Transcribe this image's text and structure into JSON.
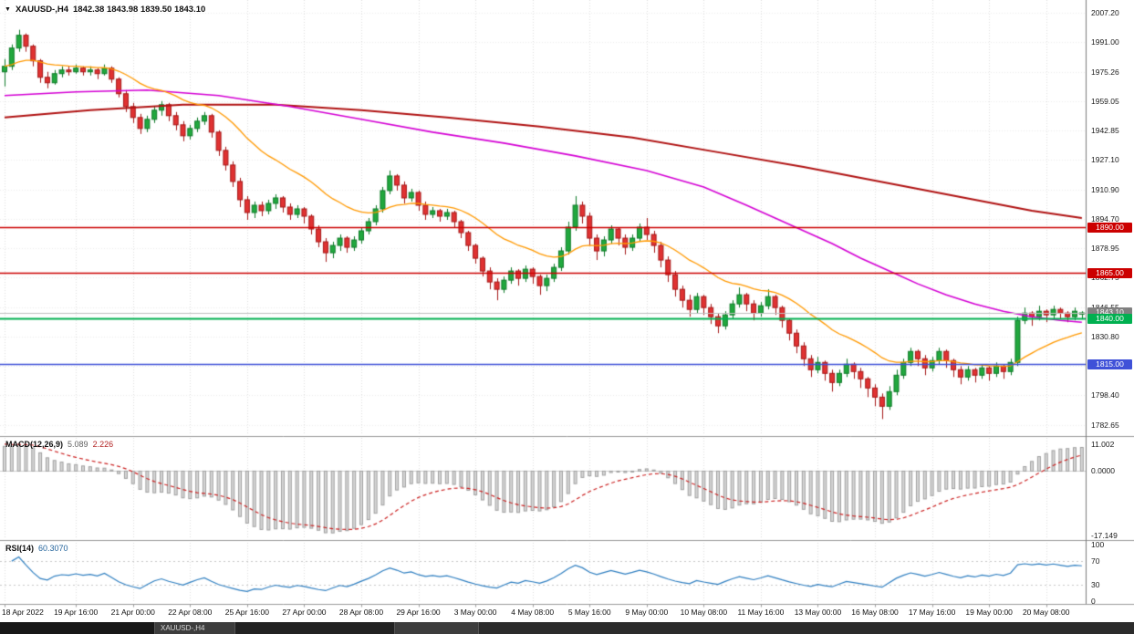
{
  "title": {
    "symbol": "XAUUSD-,H4",
    "ohlc": "1842.38 1843.98 1839.50 1843.10"
  },
  "colors": {
    "up": "#21a83e",
    "up_border": "#0e7a28",
    "down": "#e03232",
    "down_border": "#a51717",
    "ma_fast": "#ff9900",
    "ma_mid": "#d400d4",
    "ma_slow": "#b01212",
    "level_red": "#cc0000",
    "level_green": "#00b050",
    "level_blue": "#3f51d8",
    "bid_line": "#c0c0c0",
    "bid_tag": "#808080",
    "macd_bar": "#d6d6d6",
    "macd_bar_border": "#a0a0a0",
    "macd_signal": "#cc2222",
    "rsi_line": "#2f7fc1",
    "grid": "#dedede",
    "grid_h": "#ececec"
  },
  "price_axis": {
    "ticks": [
      "2007.20",
      "1991.00",
      "1975.26",
      "1959.05",
      "1942.85",
      "1927.10",
      "1910.90",
      "1894.70",
      "1878.95",
      "1862.75",
      "1846.55",
      "1830.80",
      "1815.05",
      "1798.40",
      "1782.65"
    ]
  },
  "time_axis": {
    "labels": [
      {
        "i": 0,
        "t": "18 Apr 2022"
      },
      {
        "i": 10,
        "t": "19 Apr 16:00"
      },
      {
        "i": 18,
        "t": "21 Apr 00:00"
      },
      {
        "i": 26,
        "t": "22 Apr 08:00"
      },
      {
        "i": 34,
        "t": "25 Apr 16:00"
      },
      {
        "i": 42,
        "t": "27 Apr 00:00"
      },
      {
        "i": 50,
        "t": "28 Apr 08:00"
      },
      {
        "i": 58,
        "t": "29 Apr 16:00"
      },
      {
        "i": 66,
        "t": "3 May 00:00"
      },
      {
        "i": 74,
        "t": "4 May 08:00"
      },
      {
        "i": 82,
        "t": "5 May 16:00"
      },
      {
        "i": 90,
        "t": "9 May 00:00"
      },
      {
        "i": 98,
        "t": "10 May 08:00"
      },
      {
        "i": 106,
        "t": "11 May 16:00"
      },
      {
        "i": 114,
        "t": "13 May 00:00"
      },
      {
        "i": 122,
        "t": "16 May 08:00"
      },
      {
        "i": 130,
        "t": "17 May 16:00"
      },
      {
        "i": 138,
        "t": "19 May 00:00"
      },
      {
        "i": 146,
        "t": "20 May 08:00"
      }
    ]
  },
  "chart_data": {
    "type": "candlestick",
    "symbol": "XAUUSD",
    "timeframe": "H4",
    "current_bar": {
      "open": 1842.38,
      "high": 1843.98,
      "low": 1839.5,
      "close": 1843.1
    },
    "price_range": {
      "top": 2014.3,
      "bottom": 1776.2
    },
    "candles": [
      [
        1975,
        1982,
        1967,
        1978
      ],
      [
        1978,
        1990,
        1976,
        1988
      ],
      [
        1988,
        1998,
        1986,
        1995
      ],
      [
        1995,
        1996,
        1986,
        1989
      ],
      [
        1989,
        1990,
        1978,
        1981
      ],
      [
        1981,
        1982,
        1969,
        1972
      ],
      [
        1972,
        1975,
        1966,
        1969
      ],
      [
        1969,
        1976,
        1968,
        1974
      ],
      [
        1974,
        1978,
        1972,
        1976
      ],
      [
        1976,
        1978,
        1973,
        1975
      ],
      [
        1975,
        1979,
        1974,
        1977
      ],
      [
        1977,
        1978,
        1973,
        1975
      ],
      [
        1975,
        1978,
        1973,
        1976
      ],
      [
        1976,
        1977,
        1971,
        1974
      ],
      [
        1974,
        1979,
        1973,
        1977
      ],
      [
        1977,
        1978,
        1969,
        1971
      ],
      [
        1971,
        1972,
        1961,
        1963
      ],
      [
        1963,
        1965,
        1953,
        1956
      ],
      [
        1956,
        1958,
        1947,
        1950
      ],
      [
        1950,
        1952,
        1941,
        1944
      ],
      [
        1944,
        1951,
        1942,
        1949
      ],
      [
        1949,
        1956,
        1947,
        1954
      ],
      [
        1954,
        1959,
        1951,
        1957
      ],
      [
        1957,
        1958,
        1948,
        1951
      ],
      [
        1951,
        1953,
        1943,
        1946
      ],
      [
        1946,
        1948,
        1937,
        1940
      ],
      [
        1940,
        1946,
        1938,
        1944
      ],
      [
        1944,
        1950,
        1942,
        1948
      ],
      [
        1948,
        1953,
        1946,
        1951
      ],
      [
        1951,
        1952,
        1939,
        1942
      ],
      [
        1942,
        1943,
        1929,
        1932
      ],
      [
        1932,
        1934,
        1921,
        1924
      ],
      [
        1924,
        1926,
        1912,
        1915
      ],
      [
        1915,
        1917,
        1901,
        1905
      ],
      [
        1905,
        1907,
        1894,
        1898
      ],
      [
        1898,
        1904,
        1895,
        1902
      ],
      [
        1902,
        1904,
        1896,
        1899
      ],
      [
        1899,
        1905,
        1897,
        1903
      ],
      [
        1903,
        1908,
        1900,
        1906
      ],
      [
        1906,
        1907,
        1898,
        1901
      ],
      [
        1901,
        1903,
        1894,
        1897
      ],
      [
        1897,
        1902,
        1895,
        1900
      ],
      [
        1900,
        1901,
        1892,
        1896
      ],
      [
        1896,
        1897,
        1886,
        1889
      ],
      [
        1889,
        1891,
        1879,
        1882
      ],
      [
        1882,
        1884,
        1871,
        1876
      ],
      [
        1876,
        1882,
        1873,
        1880
      ],
      [
        1880,
        1886,
        1877,
        1884
      ],
      [
        1884,
        1885,
        1876,
        1879
      ],
      [
        1879,
        1885,
        1877,
        1883
      ],
      [
        1883,
        1890,
        1881,
        1888
      ],
      [
        1888,
        1895,
        1886,
        1893
      ],
      [
        1893,
        1902,
        1891,
        1900
      ],
      [
        1900,
        1912,
        1898,
        1910
      ],
      [
        1910,
        1921,
        1908,
        1918
      ],
      [
        1918,
        1919,
        1910,
        1913
      ],
      [
        1913,
        1915,
        1903,
        1906
      ],
      [
        1906,
        1911,
        1904,
        1909
      ],
      [
        1909,
        1910,
        1899,
        1902
      ],
      [
        1902,
        1904,
        1894,
        1897
      ],
      [
        1897,
        1901,
        1895,
        1899
      ],
      [
        1899,
        1900,
        1893,
        1896
      ],
      [
        1896,
        1900,
        1894,
        1898
      ],
      [
        1898,
        1899,
        1890,
        1893
      ],
      [
        1893,
        1894,
        1884,
        1887
      ],
      [
        1887,
        1888,
        1877,
        1880
      ],
      [
        1880,
        1881,
        1870,
        1873
      ],
      [
        1873,
        1874,
        1863,
        1866
      ],
      [
        1866,
        1868,
        1856,
        1860
      ],
      [
        1860,
        1862,
        1850,
        1856
      ],
      [
        1856,
        1863,
        1854,
        1861
      ],
      [
        1861,
        1868,
        1859,
        1866
      ],
      [
        1866,
        1867,
        1858,
        1862
      ],
      [
        1862,
        1869,
        1860,
        1867
      ],
      [
        1867,
        1868,
        1859,
        1863
      ],
      [
        1863,
        1864,
        1853,
        1858
      ],
      [
        1858,
        1864,
        1855,
        1862
      ],
      [
        1862,
        1870,
        1860,
        1868
      ],
      [
        1868,
        1879,
        1866,
        1877
      ],
      [
        1877,
        1893,
        1875,
        1890
      ],
      [
        1890,
        1907,
        1888,
        1902
      ],
      [
        1902,
        1904,
        1892,
        1896
      ],
      [
        1896,
        1898,
        1880,
        1884
      ],
      [
        1884,
        1886,
        1872,
        1877
      ],
      [
        1877,
        1885,
        1874,
        1883
      ],
      [
        1883,
        1891,
        1881,
        1889
      ],
      [
        1889,
        1890,
        1880,
        1884
      ],
      [
        1884,
        1886,
        1875,
        1879
      ],
      [
        1879,
        1886,
        1877,
        1884
      ],
      [
        1884,
        1892,
        1882,
        1890
      ],
      [
        1890,
        1895,
        1883,
        1886
      ],
      [
        1886,
        1888,
        1876,
        1880
      ],
      [
        1880,
        1882,
        1868,
        1872
      ],
      [
        1872,
        1874,
        1860,
        1864
      ],
      [
        1864,
        1866,
        1852,
        1856
      ],
      [
        1856,
        1858,
        1846,
        1850
      ],
      [
        1850,
        1853,
        1841,
        1845
      ],
      [
        1845,
        1854,
        1843,
        1852
      ],
      [
        1852,
        1853,
        1842,
        1846
      ],
      [
        1846,
        1848,
        1837,
        1841
      ],
      [
        1841,
        1843,
        1832,
        1836
      ],
      [
        1836,
        1844,
        1834,
        1842
      ],
      [
        1842,
        1850,
        1840,
        1848
      ],
      [
        1848,
        1857,
        1846,
        1853
      ],
      [
        1853,
        1854,
        1844,
        1848
      ],
      [
        1848,
        1850,
        1839,
        1843
      ],
      [
        1843,
        1849,
        1841,
        1847
      ],
      [
        1847,
        1856,
        1845,
        1852
      ],
      [
        1852,
        1853,
        1842,
        1846
      ],
      [
        1846,
        1847,
        1835,
        1839
      ],
      [
        1839,
        1840,
        1828,
        1832
      ],
      [
        1832,
        1834,
        1821,
        1825
      ],
      [
        1825,
        1827,
        1814,
        1818
      ],
      [
        1818,
        1820,
        1808,
        1812
      ],
      [
        1812,
        1819,
        1810,
        1816
      ],
      [
        1816,
        1817,
        1806,
        1810
      ],
      [
        1810,
        1812,
        1800,
        1805
      ],
      [
        1805,
        1812,
        1803,
        1810
      ],
      [
        1810,
        1818,
        1808,
        1815
      ],
      [
        1815,
        1816,
        1807,
        1811
      ],
      [
        1811,
        1813,
        1802,
        1807
      ],
      [
        1807,
        1808,
        1797,
        1802
      ],
      [
        1802,
        1804,
        1792,
        1797
      ],
      [
        1797,
        1799,
        1785,
        1792
      ],
      [
        1792,
        1803,
        1790,
        1800
      ],
      [
        1800,
        1812,
        1798,
        1809
      ],
      [
        1809,
        1818,
        1807,
        1816
      ],
      [
        1816,
        1824,
        1814,
        1822
      ],
      [
        1822,
        1823,
        1814,
        1818
      ],
      [
        1818,
        1820,
        1809,
        1813
      ],
      [
        1813,
        1819,
        1811,
        1817
      ],
      [
        1817,
        1824,
        1815,
        1822
      ],
      [
        1822,
        1823,
        1813,
        1817
      ],
      [
        1817,
        1818,
        1808,
        1812
      ],
      [
        1812,
        1814,
        1804,
        1808
      ],
      [
        1808,
        1814,
        1806,
        1812
      ],
      [
        1812,
        1813,
        1805,
        1809
      ],
      [
        1809,
        1815,
        1807,
        1813
      ],
      [
        1813,
        1814,
        1806,
        1810
      ],
      [
        1810,
        1816,
        1808,
        1814
      ],
      [
        1814,
        1815,
        1807,
        1811
      ],
      [
        1811,
        1818,
        1809,
        1816
      ],
      [
        1816,
        1841,
        1814,
        1839
      ],
      [
        1839,
        1846,
        1837,
        1843
      ],
      [
        1843,
        1844,
        1836,
        1841
      ],
      [
        1841,
        1847,
        1839,
        1844
      ],
      [
        1844,
        1845,
        1838,
        1842
      ],
      [
        1842,
        1847,
        1840,
        1845
      ],
      [
        1845,
        1846,
        1840,
        1843
      ],
      [
        1843,
        1844,
        1838,
        1841
      ],
      [
        1841,
        1846,
        1839,
        1844
      ],
      [
        1842.4,
        1844,
        1839.5,
        1843.1
      ]
    ],
    "levels": [
      {
        "price": 1890.0,
        "label": "1890.00",
        "color": "#cc0000",
        "width": 1.5,
        "style": "solid"
      },
      {
        "price": 1865.0,
        "label": "1865.00",
        "color": "#cc0000",
        "width": 1.5,
        "style": "solid"
      },
      {
        "price": 1843.1,
        "label": "1843.10",
        "color": "#808080",
        "width": 1,
        "style": "bid"
      },
      {
        "price": 1840.0,
        "label": "1840.00",
        "color": "#00b050",
        "width": 2,
        "style": "solid"
      },
      {
        "price": 1815.0,
        "label": "1815.00",
        "color": "#3f51d8",
        "width": 1.5,
        "style": "solid"
      }
    ],
    "moving_averages": {
      "fast_period": 20,
      "mid_points": [
        [
          0,
          1962
        ],
        [
          10,
          1964
        ],
        [
          20,
          1965
        ],
        [
          30,
          1962
        ],
        [
          40,
          1956
        ],
        [
          50,
          1949
        ],
        [
          60,
          1942
        ],
        [
          70,
          1936
        ],
        [
          80,
          1929
        ],
        [
          90,
          1921
        ],
        [
          98,
          1912
        ],
        [
          104,
          1902
        ],
        [
          108,
          1895
        ],
        [
          112,
          1888
        ],
        [
          116,
          1881
        ],
        [
          120,
          1873
        ],
        [
          124,
          1866
        ],
        [
          128,
          1859
        ],
        [
          132,
          1853
        ],
        [
          136,
          1848
        ],
        [
          140,
          1844
        ],
        [
          144,
          1841
        ],
        [
          148,
          1839
        ],
        [
          151,
          1838
        ]
      ],
      "slow_points": [
        [
          0,
          1950
        ],
        [
          12,
          1954
        ],
        [
          25,
          1957
        ],
        [
          38,
          1957
        ],
        [
          50,
          1954
        ],
        [
          62,
          1950
        ],
        [
          75,
          1945
        ],
        [
          88,
          1939
        ],
        [
          100,
          1931
        ],
        [
          112,
          1923
        ],
        [
          124,
          1914
        ],
        [
          136,
          1905
        ],
        [
          144,
          1899
        ],
        [
          151,
          1895
        ]
      ]
    },
    "indicators": {
      "macd": {
        "name": "MACD(12,26,9)",
        "main": "5.089",
        "signal": "2.226",
        "fast": 12,
        "slow": 26,
        "smooth": 9,
        "axis_top": "11.002",
        "axis_zero": "0.0000",
        "axis_bottom": "-17.149"
      },
      "rsi": {
        "name": "RSI(14)",
        "value": "60.3070",
        "period": 14,
        "axis": [
          100,
          70,
          30,
          0
        ],
        "upper": 70,
        "lower": 30
      }
    }
  },
  "taskbar": {
    "tabs": [
      "",
      "XAUUSD-,H4",
      "",
      ""
    ]
  }
}
